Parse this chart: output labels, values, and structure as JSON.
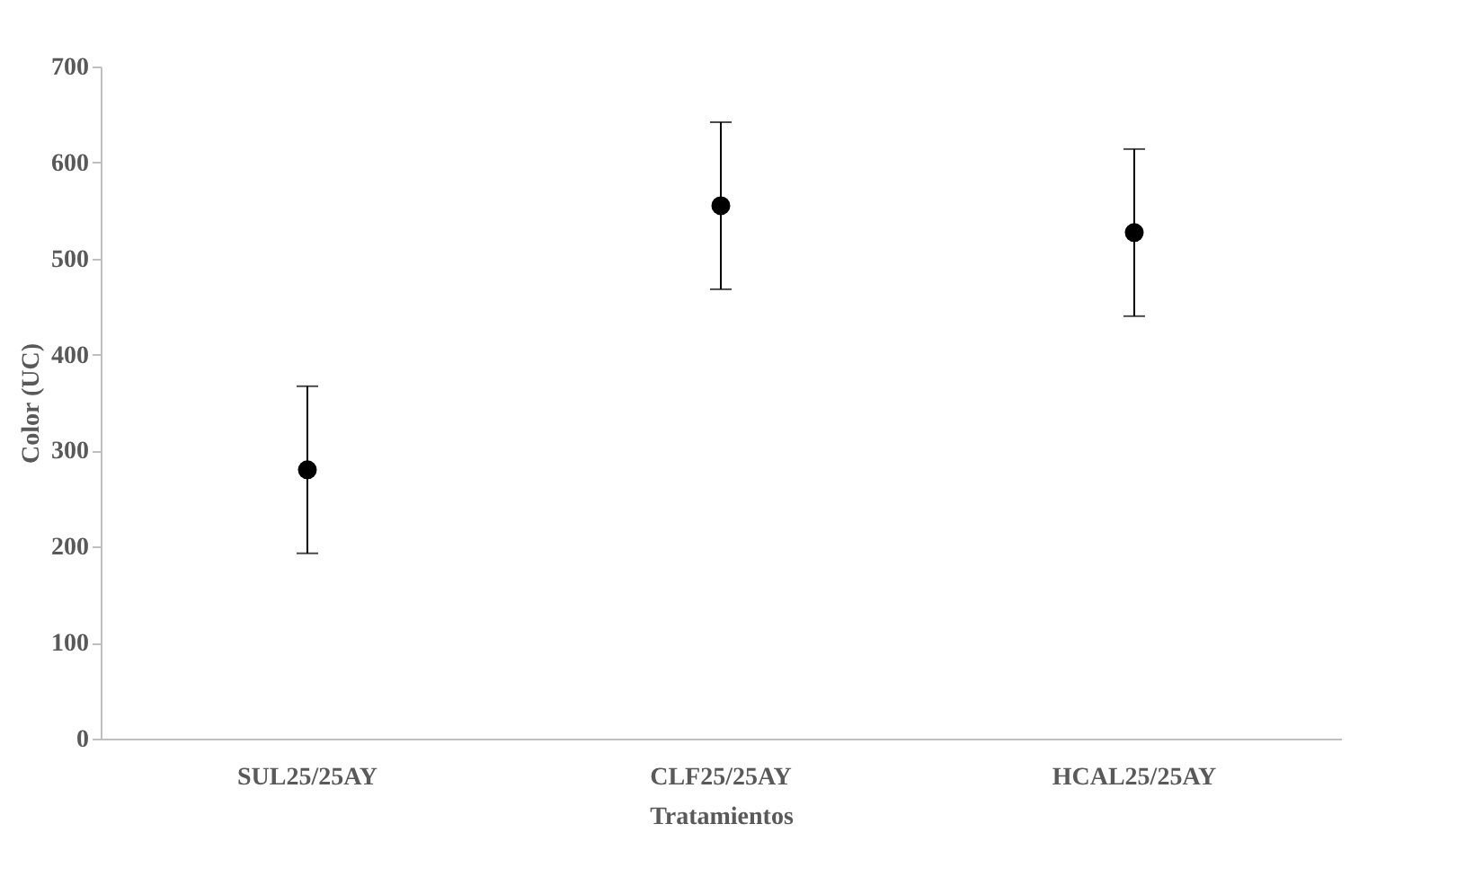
{
  "chart_data": {
    "type": "scatter",
    "xlabel": "Tratamientos",
    "ylabel": "Color (UC)",
    "categories": [
      "SUL25/25AY",
      "CLF25/25AY",
      "HCAL25/25AY"
    ],
    "series": [
      {
        "color": "#000000",
        "values": [
          280,
          555,
          527
        ],
        "errors": [
          87,
          87,
          87
        ]
      }
    ],
    "ylim": [
      0,
      700
    ],
    "yticks": [
      0,
      100,
      200,
      300,
      400,
      500,
      600,
      700
    ],
    "marker": "circle"
  }
}
